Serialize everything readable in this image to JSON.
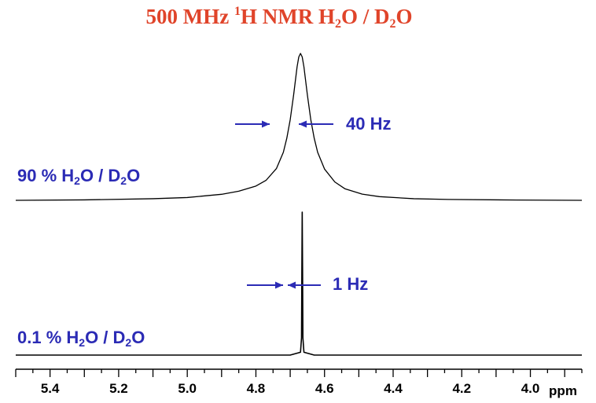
{
  "chart_data": {
    "type": "line",
    "title": {
      "parts": [
        {
          "t": "500 MHz ",
          "s": ""
        },
        {
          "t": "1",
          "s": "sup"
        },
        {
          "t": "H NMR H",
          "s": ""
        },
        {
          "t": "2",
          "s": "sub"
        },
        {
          "t": "O / D",
          "s": ""
        },
        {
          "t": "2",
          "s": "sub"
        },
        {
          "t": "O",
          "s": ""
        }
      ]
    },
    "xlabel": "ppm",
    "xlim": [
      5.5,
      3.85
    ],
    "x_reversed": true,
    "x_ticks": [
      "5.4",
      "5.2",
      "5.0",
      "4.8",
      "4.6",
      "4.4",
      "4.2",
      "4.0"
    ],
    "series": [
      {
        "name": "90 % H2O / D2O",
        "label_parts": [
          {
            "t": "90 % H",
            "s": ""
          },
          {
            "t": "2",
            "s": "sub"
          },
          {
            "t": "O / D",
            "s": ""
          },
          {
            "t": "2",
            "s": "sub"
          },
          {
            "t": "O",
            "s": ""
          }
        ],
        "peak_center_ppm": 4.67,
        "linewidth_label": "40 Hz",
        "shape": "lorentzian",
        "x": [
          5.5,
          5.3,
          5.1,
          5.0,
          4.9,
          4.85,
          4.8,
          4.77,
          4.74,
          4.72,
          4.71,
          4.7,
          4.69,
          4.68,
          4.675,
          4.67,
          4.665,
          4.66,
          4.65,
          4.64,
          4.63,
          4.62,
          4.6,
          4.57,
          4.54,
          4.49,
          4.44,
          4.34,
          4.24,
          4.04,
          3.85
        ],
        "y": [
          0.0,
          0.003,
          0.011,
          0.019,
          0.041,
          0.062,
          0.097,
          0.137,
          0.217,
          0.327,
          0.422,
          0.549,
          0.718,
          0.908,
          0.976,
          1.0,
          0.976,
          0.908,
          0.718,
          0.549,
          0.422,
          0.327,
          0.213,
          0.125,
          0.078,
          0.042,
          0.025,
          0.011,
          0.006,
          0.002,
          0.0
        ]
      },
      {
        "name": "0.1 % H2O / D2O",
        "label_parts": [
          {
            "t": "0.1 % H",
            "s": ""
          },
          {
            "t": "2",
            "s": "sub"
          },
          {
            "t": "O / D",
            "s": ""
          },
          {
            "t": "2",
            "s": "sub"
          },
          {
            "t": "O",
            "s": ""
          }
        ],
        "peak_center_ppm": 4.665,
        "linewidth_label": "1 Hz",
        "shape": "lorentzian",
        "x": [
          5.5,
          4.7,
          4.67,
          4.667,
          4.666,
          4.665,
          4.664,
          4.663,
          4.66,
          4.63,
          3.85
        ],
        "y": [
          0.0,
          0.0,
          0.02,
          0.12,
          0.6,
          1.0,
          0.6,
          0.12,
          0.02,
          0.0,
          0.0
        ]
      }
    ],
    "colors": {
      "title": "#e0442a",
      "annotation": "#2b2bb5",
      "trace": "#000000",
      "background": "#ffffff"
    }
  }
}
